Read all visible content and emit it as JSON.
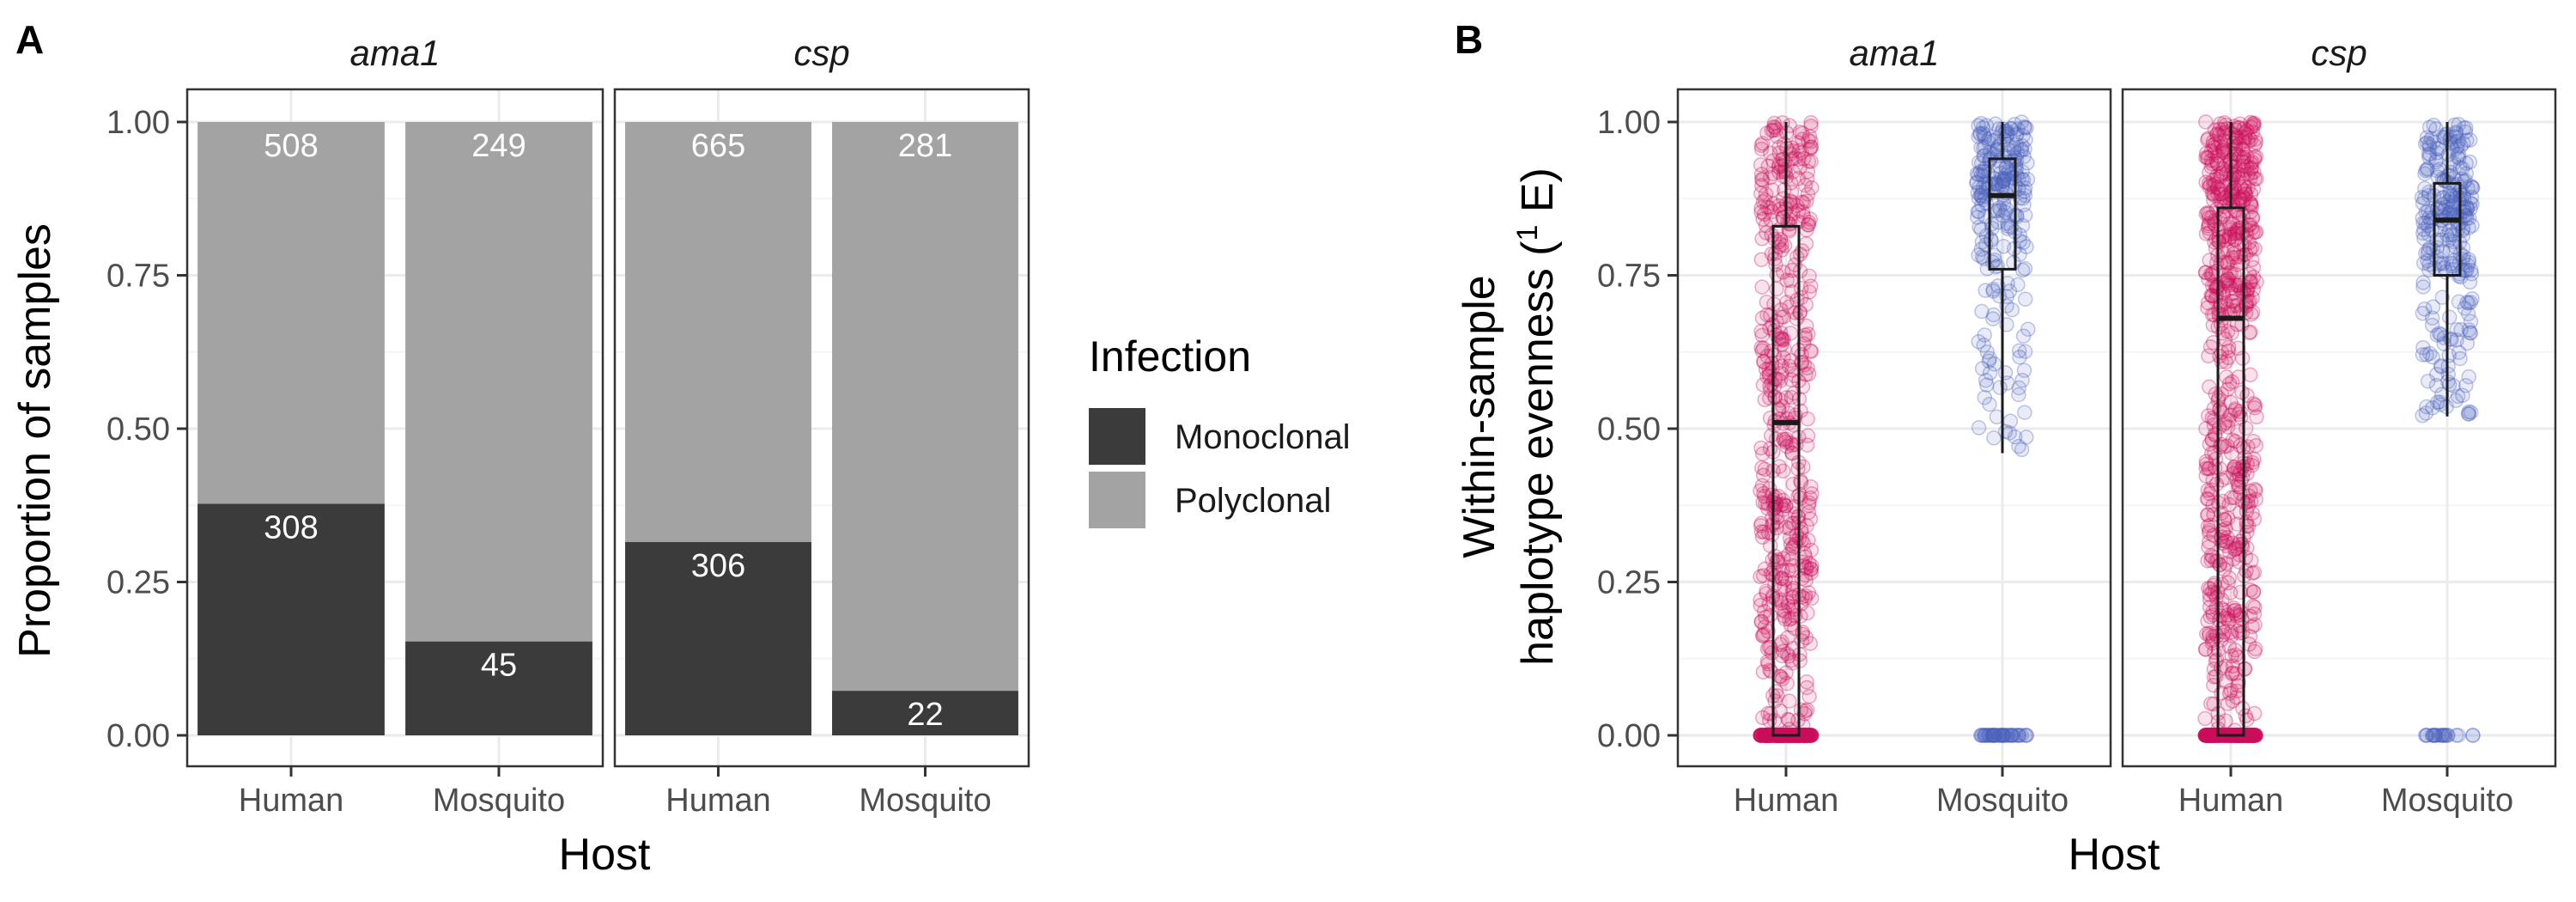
{
  "colors": {
    "monoclonal": "#3b3b3b",
    "polyclonal": "#a3a3a3",
    "human": "#cc0d5c",
    "mosquito": "#4a5fbd",
    "grid_major": "#ebebeb",
    "grid_minor": "#f5f5f5",
    "panel_border": "#333333"
  },
  "chart_data": [
    {
      "type": "bar",
      "panel_label": "A",
      "stacked": true,
      "position": "fill",
      "xlabel": "Host",
      "ylabel": "Proportion of samples",
      "ylim": [
        0,
        1
      ],
      "yticks": [
        "0.00",
        "0.25",
        "0.50",
        "0.75",
        "1.00"
      ],
      "categories": [
        "Human",
        "Mosquito"
      ],
      "legend": {
        "title": "Infection",
        "position": "right",
        "entries": [
          "Monoclonal",
          "Polyclonal"
        ]
      },
      "facets": [
        {
          "name": "ama1",
          "series": [
            {
              "name": "Monoclonal",
              "counts": [
                308,
                45
              ]
            },
            {
              "name": "Polyclonal",
              "counts": [
                508,
                249
              ]
            }
          ]
        },
        {
          "name": "csp",
          "series": [
            {
              "name": "Monoclonal",
              "counts": [
                306,
                22
              ]
            },
            {
              "name": "Polyclonal",
              "counts": [
                665,
                281
              ]
            }
          ]
        }
      ]
    },
    {
      "type": "boxplot_jitter",
      "panel_label": "B",
      "xlabel": "Host",
      "ylabel_line1": "Within-sample",
      "ylabel_line2_main": "haplotype evenness (",
      "ylabel_superscript": "1",
      "ylabel_line2_end": " E)",
      "ylim": [
        0,
        1
      ],
      "yticks": [
        "0.00",
        "0.25",
        "0.50",
        "0.75",
        "1.00"
      ],
      "categories": [
        "Human",
        "Mosquito"
      ],
      "facets": [
        {
          "name": "ama1",
          "boxes": [
            {
              "category": "Human",
              "min": 0,
              "q1": 0,
              "median": 0.51,
              "q3": 0.83,
              "max": 1.0,
              "n_points": 816,
              "frac_zero": 0.377
            },
            {
              "category": "Mosquito",
              "min": 0.46,
              "q1": 0.76,
              "median": 0.88,
              "q3": 0.94,
              "max": 1.0,
              "n_points": 294,
              "frac_zero": 0.153
            }
          ]
        },
        {
          "name": "csp",
          "boxes": [
            {
              "category": "Human",
              "min": 0,
              "q1": 0,
              "median": 0.68,
              "q3": 0.86,
              "max": 1.0,
              "n_points": 971,
              "frac_zero": 0.315
            },
            {
              "category": "Mosquito",
              "min": 0.52,
              "q1": 0.75,
              "median": 0.84,
              "q3": 0.9,
              "max": 1.0,
              "n_points": 303,
              "frac_zero": 0.073
            }
          ]
        }
      ]
    }
  ]
}
